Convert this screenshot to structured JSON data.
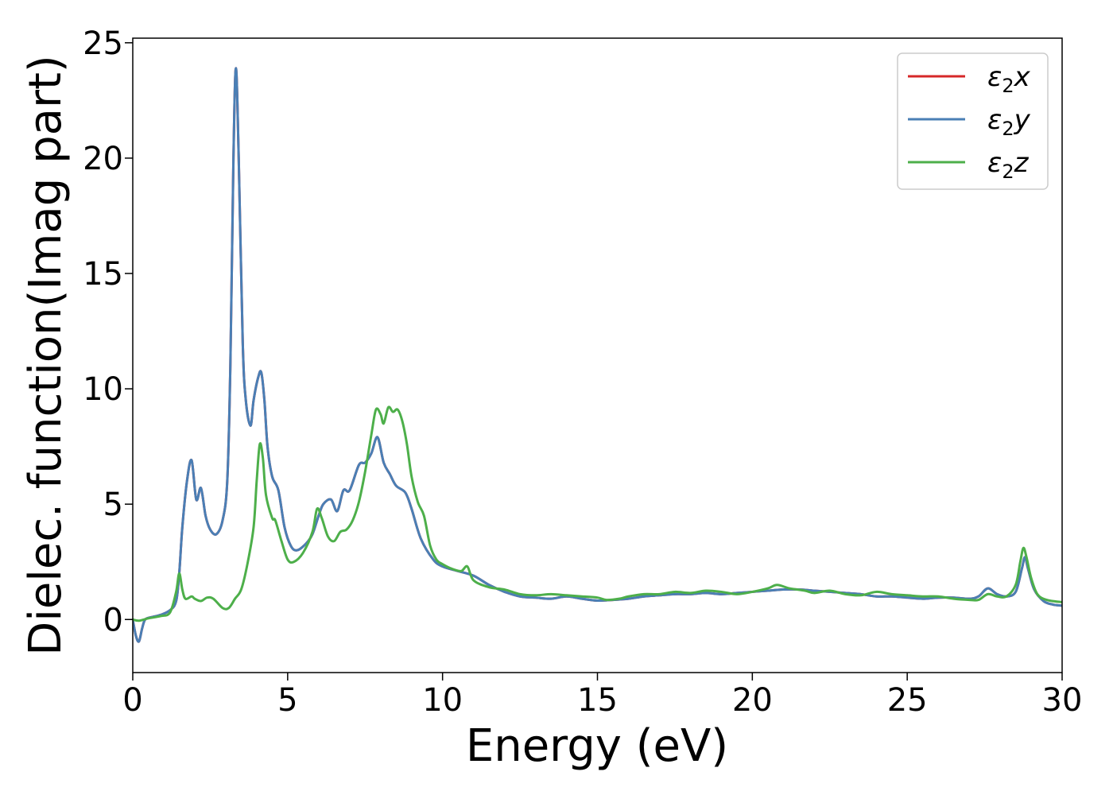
{
  "chart_data": {
    "type": "line",
    "title": "",
    "xlabel": "Energy (eV)",
    "ylabel": "Dielec. function(Imag part)",
    "xlim": [
      0,
      30
    ],
    "ylim": [
      -2.3,
      25.2
    ],
    "xticks": [
      0,
      5,
      10,
      15,
      20,
      25,
      30
    ],
    "yticks": [
      0,
      5,
      10,
      15,
      20,
      25
    ],
    "xtick_labels": [
      "0",
      "5",
      "10",
      "15",
      "20",
      "25",
      "30"
    ],
    "ytick_labels": [
      "0",
      "5",
      "10",
      "15",
      "20",
      "25"
    ],
    "grid": false,
    "legend_position": "top-right",
    "series": [
      {
        "name": "ε2x",
        "label_base": "ε",
        "label_sub": "2",
        "label_suffix": "x",
        "color": "#d62728",
        "points": [
          [
            0,
            0
          ],
          [
            0.1,
            -0.7
          ],
          [
            0.2,
            -0.95
          ],
          [
            0.3,
            -0.4
          ],
          [
            0.4,
            0
          ],
          [
            0.6,
            0.1
          ],
          [
            0.9,
            0.2
          ],
          [
            1.2,
            0.4
          ],
          [
            1.4,
            0.8
          ],
          [
            1.5,
            2
          ],
          [
            1.6,
            4
          ],
          [
            1.75,
            6
          ],
          [
            1.9,
            6.9
          ],
          [
            2.05,
            5.2
          ],
          [
            2.2,
            5.7
          ],
          [
            2.35,
            4.5
          ],
          [
            2.5,
            3.9
          ],
          [
            2.7,
            3.7
          ],
          [
            2.9,
            4.3
          ],
          [
            3.05,
            6
          ],
          [
            3.15,
            11
          ],
          [
            3.25,
            20
          ],
          [
            3.33,
            23.9
          ],
          [
            3.42,
            20
          ],
          [
            3.55,
            12
          ],
          [
            3.65,
            9.5
          ],
          [
            3.8,
            8.4
          ],
          [
            3.9,
            9.5
          ],
          [
            4.05,
            10.5
          ],
          [
            4.15,
            10.7
          ],
          [
            4.25,
            9.5
          ],
          [
            4.35,
            7.5
          ],
          [
            4.5,
            6.2
          ],
          [
            4.7,
            5.6
          ],
          [
            4.9,
            4
          ],
          [
            5.1,
            3.2
          ],
          [
            5.3,
            3
          ],
          [
            5.6,
            3.3
          ],
          [
            5.8,
            3.7
          ],
          [
            6.0,
            4.5
          ],
          [
            6.15,
            5
          ],
          [
            6.4,
            5.2
          ],
          [
            6.6,
            4.7
          ],
          [
            6.8,
            5.6
          ],
          [
            7.0,
            5.6
          ],
          [
            7.3,
            6.7
          ],
          [
            7.5,
            6.8
          ],
          [
            7.7,
            7.2
          ],
          [
            7.9,
            7.9
          ],
          [
            8.1,
            6.8
          ],
          [
            8.3,
            6.3
          ],
          [
            8.5,
            5.8
          ],
          [
            8.8,
            5.5
          ],
          [
            9.0,
            4.8
          ],
          [
            9.3,
            3.5
          ],
          [
            9.7,
            2.6
          ],
          [
            10.0,
            2.3
          ],
          [
            10.5,
            2.1
          ],
          [
            11.0,
            1.9
          ],
          [
            11.5,
            1.5
          ],
          [
            12.0,
            1.2
          ],
          [
            12.5,
            1.0
          ],
          [
            13.0,
            0.95
          ],
          [
            13.5,
            0.9
          ],
          [
            14.0,
            1.0
          ],
          [
            14.5,
            0.9
          ],
          [
            15.0,
            0.82
          ],
          [
            15.5,
            0.85
          ],
          [
            16.0,
            0.9
          ],
          [
            16.5,
            1.0
          ],
          [
            17.0,
            1.05
          ],
          [
            17.5,
            1.1
          ],
          [
            18.0,
            1.1
          ],
          [
            18.5,
            1.15
          ],
          [
            19.0,
            1.1
          ],
          [
            19.5,
            1.15
          ],
          [
            20.0,
            1.2
          ],
          [
            20.5,
            1.25
          ],
          [
            21.0,
            1.3
          ],
          [
            21.5,
            1.3
          ],
          [
            22.0,
            1.25
          ],
          [
            22.5,
            1.2
          ],
          [
            23.0,
            1.15
          ],
          [
            23.5,
            1.1
          ],
          [
            24.0,
            1.0
          ],
          [
            24.5,
            1.0
          ],
          [
            25.0,
            0.95
          ],
          [
            25.5,
            0.9
          ],
          [
            26.0,
            0.95
          ],
          [
            26.5,
            0.95
          ],
          [
            27.0,
            0.9
          ],
          [
            27.3,
            1.0
          ],
          [
            27.6,
            1.35
          ],
          [
            27.9,
            1.1
          ],
          [
            28.2,
            1.0
          ],
          [
            28.5,
            1.2
          ],
          [
            28.7,
            2.2
          ],
          [
            28.8,
            2.7
          ],
          [
            28.9,
            2.2
          ],
          [
            29.1,
            1.3
          ],
          [
            29.4,
            0.8
          ],
          [
            29.7,
            0.65
          ],
          [
            30.0,
            0.6
          ]
        ]
      },
      {
        "name": "ε2y",
        "label_base": "ε",
        "label_sub": "2",
        "label_suffix": "y",
        "color": "#4a7fb5",
        "points": [
          [
            0,
            0
          ],
          [
            0.1,
            -0.7
          ],
          [
            0.2,
            -0.95
          ],
          [
            0.3,
            -0.4
          ],
          [
            0.4,
            0
          ],
          [
            0.6,
            0.1
          ],
          [
            0.9,
            0.2
          ],
          [
            1.2,
            0.4
          ],
          [
            1.4,
            0.8
          ],
          [
            1.5,
            2
          ],
          [
            1.6,
            4
          ],
          [
            1.75,
            6
          ],
          [
            1.9,
            6.9
          ],
          [
            2.05,
            5.2
          ],
          [
            2.2,
            5.7
          ],
          [
            2.35,
            4.5
          ],
          [
            2.5,
            3.9
          ],
          [
            2.7,
            3.7
          ],
          [
            2.9,
            4.3
          ],
          [
            3.05,
            6
          ],
          [
            3.15,
            11
          ],
          [
            3.25,
            20
          ],
          [
            3.33,
            23.9
          ],
          [
            3.42,
            20
          ],
          [
            3.55,
            12
          ],
          [
            3.65,
            9.5
          ],
          [
            3.8,
            8.4
          ],
          [
            3.9,
            9.5
          ],
          [
            4.05,
            10.5
          ],
          [
            4.15,
            10.7
          ],
          [
            4.25,
            9.5
          ],
          [
            4.35,
            7.5
          ],
          [
            4.5,
            6.2
          ],
          [
            4.7,
            5.6
          ],
          [
            4.9,
            4
          ],
          [
            5.1,
            3.2
          ],
          [
            5.3,
            3
          ],
          [
            5.6,
            3.3
          ],
          [
            5.8,
            3.7
          ],
          [
            6.0,
            4.5
          ],
          [
            6.15,
            5
          ],
          [
            6.4,
            5.2
          ],
          [
            6.6,
            4.7
          ],
          [
            6.8,
            5.6
          ],
          [
            7.0,
            5.6
          ],
          [
            7.3,
            6.7
          ],
          [
            7.5,
            6.8
          ],
          [
            7.7,
            7.2
          ],
          [
            7.9,
            7.9
          ],
          [
            8.1,
            6.8
          ],
          [
            8.3,
            6.3
          ],
          [
            8.5,
            5.8
          ],
          [
            8.8,
            5.5
          ],
          [
            9.0,
            4.8
          ],
          [
            9.3,
            3.5
          ],
          [
            9.7,
            2.6
          ],
          [
            10.0,
            2.3
          ],
          [
            10.5,
            2.1
          ],
          [
            11.0,
            1.9
          ],
          [
            11.5,
            1.5
          ],
          [
            12.0,
            1.2
          ],
          [
            12.5,
            1.0
          ],
          [
            13.0,
            0.95
          ],
          [
            13.5,
            0.9
          ],
          [
            14.0,
            1.0
          ],
          [
            14.5,
            0.9
          ],
          [
            15.0,
            0.82
          ],
          [
            15.5,
            0.85
          ],
          [
            16.0,
            0.9
          ],
          [
            16.5,
            1.0
          ],
          [
            17.0,
            1.05
          ],
          [
            17.5,
            1.1
          ],
          [
            18.0,
            1.1
          ],
          [
            18.5,
            1.15
          ],
          [
            19.0,
            1.1
          ],
          [
            19.5,
            1.15
          ],
          [
            20.0,
            1.2
          ],
          [
            20.5,
            1.25
          ],
          [
            21.0,
            1.3
          ],
          [
            21.5,
            1.3
          ],
          [
            22.0,
            1.25
          ],
          [
            22.5,
            1.2
          ],
          [
            23.0,
            1.15
          ],
          [
            23.5,
            1.1
          ],
          [
            24.0,
            1.0
          ],
          [
            24.5,
            1.0
          ],
          [
            25.0,
            0.95
          ],
          [
            25.5,
            0.9
          ],
          [
            26.0,
            0.95
          ],
          [
            26.5,
            0.95
          ],
          [
            27.0,
            0.9
          ],
          [
            27.3,
            1.0
          ],
          [
            27.6,
            1.35
          ],
          [
            27.9,
            1.1
          ],
          [
            28.2,
            1.0
          ],
          [
            28.5,
            1.2
          ],
          [
            28.7,
            2.2
          ],
          [
            28.8,
            2.7
          ],
          [
            28.9,
            2.2
          ],
          [
            29.1,
            1.3
          ],
          [
            29.4,
            0.8
          ],
          [
            29.7,
            0.65
          ],
          [
            30.0,
            0.6
          ]
        ]
      },
      {
        "name": "ε2z",
        "label_base": "ε",
        "label_sub": "2",
        "label_suffix": "z",
        "color": "#4daf4a",
        "points": [
          [
            0,
            0
          ],
          [
            0.2,
            -0.05
          ],
          [
            0.5,
            0.05
          ],
          [
            0.9,
            0.15
          ],
          [
            1.2,
            0.3
          ],
          [
            1.4,
            1.2
          ],
          [
            1.5,
            2.0
          ],
          [
            1.6,
            1.3
          ],
          [
            1.7,
            0.9
          ],
          [
            1.9,
            1.0
          ],
          [
            2.0,
            0.9
          ],
          [
            2.2,
            0.8
          ],
          [
            2.4,
            0.95
          ],
          [
            2.6,
            0.9
          ],
          [
            2.9,
            0.5
          ],
          [
            3.1,
            0.5
          ],
          [
            3.3,
            0.9
          ],
          [
            3.5,
            1.3
          ],
          [
            3.7,
            2.4
          ],
          [
            3.9,
            4.0
          ],
          [
            4.0,
            6.0
          ],
          [
            4.1,
            7.6
          ],
          [
            4.2,
            7.0
          ],
          [
            4.3,
            5.4
          ],
          [
            4.5,
            4.4
          ],
          [
            4.6,
            4.3
          ],
          [
            4.8,
            3.4
          ],
          [
            5.0,
            2.6
          ],
          [
            5.2,
            2.5
          ],
          [
            5.5,
            2.9
          ],
          [
            5.8,
            3.8
          ],
          [
            5.95,
            4.8
          ],
          [
            6.1,
            4.4
          ],
          [
            6.3,
            3.6
          ],
          [
            6.5,
            3.4
          ],
          [
            6.7,
            3.8
          ],
          [
            6.9,
            3.9
          ],
          [
            7.1,
            4.3
          ],
          [
            7.3,
            5.1
          ],
          [
            7.5,
            6.4
          ],
          [
            7.7,
            8.0
          ],
          [
            7.85,
            9.1
          ],
          [
            8.0,
            8.9
          ],
          [
            8.1,
            8.5
          ],
          [
            8.25,
            9.2
          ],
          [
            8.4,
            9.0
          ],
          [
            8.55,
            9.1
          ],
          [
            8.7,
            8.6
          ],
          [
            8.85,
            7.6
          ],
          [
            9.0,
            6.2
          ],
          [
            9.2,
            5.1
          ],
          [
            9.4,
            4.5
          ],
          [
            9.6,
            3.2
          ],
          [
            9.8,
            2.6
          ],
          [
            10.0,
            2.4
          ],
          [
            10.3,
            2.2
          ],
          [
            10.6,
            2.1
          ],
          [
            10.8,
            2.3
          ],
          [
            11.0,
            1.7
          ],
          [
            11.5,
            1.4
          ],
          [
            12.0,
            1.3
          ],
          [
            12.5,
            1.1
          ],
          [
            13.0,
            1.05
          ],
          [
            13.5,
            1.1
          ],
          [
            14.0,
            1.05
          ],
          [
            14.5,
            1.0
          ],
          [
            15.0,
            0.95
          ],
          [
            15.3,
            0.85
          ],
          [
            15.7,
            0.9
          ],
          [
            16.0,
            1.0
          ],
          [
            16.5,
            1.1
          ],
          [
            17.0,
            1.1
          ],
          [
            17.5,
            1.2
          ],
          [
            18.0,
            1.15
          ],
          [
            18.5,
            1.25
          ],
          [
            19.0,
            1.2
          ],
          [
            19.5,
            1.1
          ],
          [
            20.0,
            1.2
          ],
          [
            20.5,
            1.35
          ],
          [
            20.8,
            1.5
          ],
          [
            21.2,
            1.35
          ],
          [
            21.7,
            1.25
          ],
          [
            22.0,
            1.15
          ],
          [
            22.5,
            1.25
          ],
          [
            23.0,
            1.1
          ],
          [
            23.5,
            1.05
          ],
          [
            24.0,
            1.2
          ],
          [
            24.5,
            1.1
          ],
          [
            25.0,
            1.05
          ],
          [
            25.5,
            1.0
          ],
          [
            26.0,
            1.0
          ],
          [
            26.5,
            0.9
          ],
          [
            27.0,
            0.85
          ],
          [
            27.3,
            0.85
          ],
          [
            27.6,
            1.1
          ],
          [
            27.9,
            1.0
          ],
          [
            28.2,
            1.0
          ],
          [
            28.5,
            1.5
          ],
          [
            28.65,
            2.5
          ],
          [
            28.75,
            3.1
          ],
          [
            28.85,
            2.7
          ],
          [
            29.0,
            1.8
          ],
          [
            29.2,
            1.1
          ],
          [
            29.5,
            0.85
          ],
          [
            30.0,
            0.75
          ]
        ]
      }
    ]
  }
}
